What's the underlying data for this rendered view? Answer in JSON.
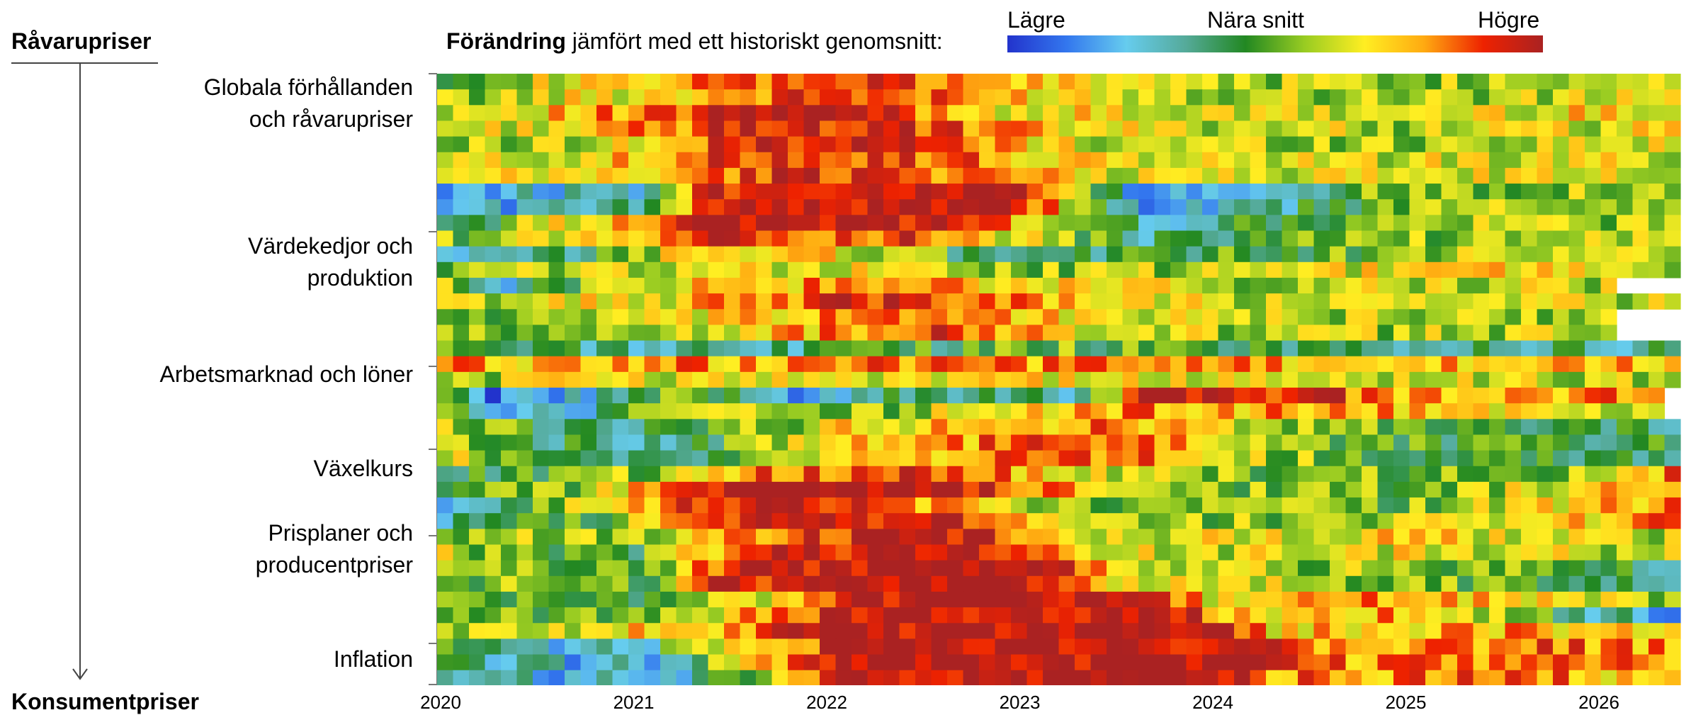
{
  "labels": {
    "top_left": "Råvarupriser",
    "bottom_left": "Konsumentpriser",
    "legend_title_bold": "Förändring",
    "legend_title_rest": " jämfört med ett historiskt genomsnitt:",
    "legend_low": "Lägre",
    "legend_mid": "Nära snitt",
    "legend_high": "Högre"
  },
  "chart_data": {
    "type": "heatmap",
    "title": "Förändring jämfört med ett historiskt genomsnitt:",
    "row_groups": [
      {
        "label_line1": "Globala förhållanden",
        "label_line2": "och råvarupriser"
      },
      {
        "label_line1": "Värdekedjor och",
        "label_line2": "produktion"
      },
      {
        "label_line1": "Arbetsmarknad och löner",
        "label_line2": ""
      },
      {
        "label_line1": "Växelkurs",
        "label_line2": ""
      },
      {
        "label_line1": "Prisplaner och",
        "label_line2": "producentpriser"
      },
      {
        "label_line1": "Inflation",
        "label_line2": ""
      }
    ],
    "x_ticks": [
      "2020",
      "2021",
      "2022",
      "2023",
      "2024",
      "2025",
      "2026"
    ],
    "x_range": [
      "2020-01",
      "2026-05"
    ],
    "n_rows": 39,
    "color_scale": {
      "low_label": "Lägre",
      "mid_label": "Nära snitt",
      "high_label": "Högre",
      "stops": [
        "#2233cc",
        "#3377ee",
        "#66ccee",
        "#55aa99",
        "#228822",
        "#99cc22",
        "#ffee22",
        "#ffaa11",
        "#ee2200",
        "#aa2222"
      ]
    },
    "row_profiles": [
      {
        "pts": [
          [
            0,
            0.1
          ],
          [
            14,
            0.45
          ],
          [
            24,
            0.8
          ],
          [
            34,
            0.5
          ],
          [
            50,
            0.2
          ],
          [
            70,
            0.15
          ],
          [
            77,
            0.45
          ]
        ]
      },
      {
        "pts": [
          [
            0,
            0.3
          ],
          [
            14,
            0.6
          ],
          [
            18,
            1.0
          ],
          [
            26,
            0.9
          ],
          [
            34,
            0.4
          ],
          [
            50,
            0.2
          ],
          [
            77,
            0.4
          ]
        ]
      },
      {
        "pts": [
          [
            0,
            0.2
          ],
          [
            14,
            0.55
          ],
          [
            20,
            0.95
          ],
          [
            30,
            0.75
          ],
          [
            40,
            0.3
          ],
          [
            60,
            0.2
          ],
          [
            77,
            0.3
          ]
        ]
      },
      {
        "pts": [
          [
            0,
            0.05
          ],
          [
            14,
            0.4
          ],
          [
            20,
            0.95
          ],
          [
            30,
            0.8
          ],
          [
            40,
            0.25
          ],
          [
            60,
            0.15
          ],
          [
            77,
            0.3
          ]
        ]
      },
      {
        "pts": [
          [
            0,
            0.2
          ],
          [
            14,
            0.45
          ],
          [
            20,
            0.9
          ],
          [
            30,
            0.75
          ],
          [
            40,
            0.3
          ],
          [
            77,
            0.25
          ]
        ]
      },
      {
        "pts": [
          [
            0,
            0.2
          ],
          [
            14,
            0.45
          ],
          [
            22,
            0.9
          ],
          [
            32,
            0.7
          ],
          [
            40,
            0.3
          ],
          [
            77,
            0.25
          ]
        ]
      },
      {
        "pts": [
          [
            0,
            -0.6
          ],
          [
            12,
            -0.4
          ],
          [
            16,
            0.9
          ],
          [
            34,
            1.0
          ],
          [
            38,
            0.55
          ],
          [
            44,
            -0.8
          ],
          [
            50,
            -0.5
          ],
          [
            60,
            0.1
          ],
          [
            77,
            0.2
          ]
        ]
      },
      {
        "pts": [
          [
            0,
            -0.3
          ],
          [
            12,
            0.7
          ],
          [
            16,
            1.0
          ],
          [
            30,
            0.95
          ],
          [
            36,
            0.5
          ],
          [
            44,
            -0.4
          ],
          [
            60,
            0.1
          ],
          [
            77,
            0.2
          ]
        ]
      },
      {
        "pts": [
          [
            0,
            0.05
          ],
          [
            10,
            0.4
          ],
          [
            16,
            0.9
          ],
          [
            30,
            0.7
          ],
          [
            34,
            0.4
          ],
          [
            44,
            -0.3
          ],
          [
            60,
            0.1
          ],
          [
            77,
            0.2
          ]
        ]
      },
      {
        "pts": [
          [
            0,
            -0.7
          ],
          [
            8,
            -0.3
          ],
          [
            16,
            0.5
          ],
          [
            28,
            0.25
          ],
          [
            34,
            -0.3
          ],
          [
            50,
            -0.1
          ],
          [
            60,
            0.1
          ],
          [
            77,
            0.2
          ]
        ]
      },
      {
        "pts": [
          [
            0,
            0.05
          ],
          [
            14,
            0.3
          ],
          [
            24,
            0.3
          ],
          [
            36,
            0.1
          ],
          [
            48,
            0.15
          ],
          [
            66,
            0.45
          ],
          [
            77,
            0.2
          ]
        ]
      },
      {
        "pts": [
          [
            0,
            0.1
          ],
          [
            4,
            -0.4
          ],
          [
            10,
            0.15
          ],
          [
            18,
            0.5
          ],
          [
            30,
            0.55
          ],
          [
            40,
            0.3
          ],
          [
            50,
            0.2
          ],
          [
            73,
            0.2
          ]
        ]
      },
      {
        "pts": [
          [
            0,
            0.2
          ],
          [
            14,
            0.35
          ],
          [
            22,
            0.7
          ],
          [
            28,
            0.9
          ],
          [
            34,
            0.75
          ],
          [
            40,
            0.4
          ],
          [
            50,
            0.2
          ],
          [
            78,
            0.2
          ]
        ]
      },
      {
        "pts": [
          [
            0,
            0.0
          ],
          [
            8,
            0.05
          ],
          [
            14,
            0.2
          ],
          [
            24,
            0.55
          ],
          [
            30,
            0.75
          ],
          [
            36,
            0.5
          ],
          [
            44,
            0.2
          ],
          [
            73,
            0.15
          ]
        ]
      },
      {
        "pts": [
          [
            0,
            0.15
          ],
          [
            5,
            -0.3
          ],
          [
            16,
            -0.35
          ],
          [
            28,
            -0.2
          ],
          [
            36,
            0.05
          ],
          [
            50,
            -0.2
          ],
          [
            77,
            -0.3
          ]
        ]
      },
      {
        "pts": [
          [
            0,
            0.5
          ],
          [
            14,
            0.55
          ],
          [
            30,
            0.6
          ],
          [
            50,
            0.5
          ],
          [
            77,
            0.45
          ]
        ]
      },
      {
        "pts": [
          [
            0,
            0.15
          ],
          [
            10,
            0.3
          ],
          [
            24,
            0.35
          ],
          [
            40,
            0.3
          ],
          [
            60,
            0.2
          ],
          [
            77,
            0.2
          ]
        ]
      },
      {
        "pts": [
          [
            0,
            -0.1
          ],
          [
            3,
            -0.8
          ],
          [
            8,
            -0.6
          ],
          [
            14,
            0.15
          ],
          [
            22,
            -0.7
          ],
          [
            26,
            -0.3
          ],
          [
            40,
            -0.3
          ],
          [
            44,
            0.9
          ],
          [
            52,
            0.9
          ],
          [
            60,
            0.6
          ],
          [
            76,
            0.6
          ]
        ]
      },
      {
        "pts": [
          [
            0,
            0.1
          ],
          [
            3,
            -0.7
          ],
          [
            8,
            -0.5
          ],
          [
            14,
            0.2
          ],
          [
            24,
            0.05
          ],
          [
            34,
            0.3
          ],
          [
            44,
            0.6
          ],
          [
            60,
            0.45
          ],
          [
            76,
            0.3
          ]
        ]
      },
      {
        "pts": [
          [
            0,
            0.3
          ],
          [
            6,
            -0.2
          ],
          [
            14,
            -0.2
          ],
          [
            24,
            0.3
          ],
          [
            32,
            0.5
          ],
          [
            40,
            0.6
          ],
          [
            50,
            0.3
          ],
          [
            60,
            -0.1
          ],
          [
            77,
            -0.2
          ]
        ]
      },
      {
        "pts": [
          [
            0,
            0.3
          ],
          [
            6,
            -0.2
          ],
          [
            14,
            -0.3
          ],
          [
            24,
            0.3
          ],
          [
            34,
            0.6
          ],
          [
            44,
            0.7
          ],
          [
            50,
            0.2
          ],
          [
            60,
            -0.1
          ],
          [
            78,
            -0.2
          ]
        ]
      },
      {
        "pts": [
          [
            0,
            -0.2
          ],
          [
            14,
            0.15
          ],
          [
            20,
            0.65
          ],
          [
            26,
            0.75
          ],
          [
            34,
            0.65
          ],
          [
            40,
            0.3
          ],
          [
            50,
            0.05
          ],
          [
            70,
            0.0
          ],
          [
            77,
            0.6
          ]
        ]
      },
      {
        "pts": [
          [
            0,
            -0.2
          ],
          [
            10,
            0.2
          ],
          [
            16,
            1.0
          ],
          [
            32,
            1.0
          ],
          [
            36,
            0.7
          ],
          [
            44,
            0.1
          ],
          [
            60,
            0.0
          ],
          [
            77,
            0.5
          ]
        ]
      },
      {
        "pts": [
          [
            0,
            -0.4
          ],
          [
            10,
            0.3
          ],
          [
            16,
            0.8
          ],
          [
            24,
            0.85
          ],
          [
            30,
            0.6
          ],
          [
            40,
            0.05
          ],
          [
            60,
            0.0
          ],
          [
            77,
            0.6
          ]
        ]
      },
      {
        "pts": [
          [
            0,
            -0.4
          ],
          [
            10,
            0.0
          ],
          [
            16,
            0.75
          ],
          [
            24,
            0.85
          ],
          [
            30,
            0.95
          ],
          [
            34,
            0.6
          ],
          [
            40,
            0.05
          ],
          [
            60,
            0.2
          ],
          [
            77,
            0.6
          ]
        ]
      },
      {
        "pts": [
          [
            0,
            0.1
          ],
          [
            10,
            0.1
          ],
          [
            18,
            0.5
          ],
          [
            26,
            0.9
          ],
          [
            34,
            1.0
          ],
          [
            40,
            0.2
          ],
          [
            60,
            0.4
          ],
          [
            77,
            0.2
          ]
        ]
      },
      {
        "pts": [
          [
            0,
            0.2
          ],
          [
            12,
            -0.1
          ],
          [
            16,
            0.5
          ],
          [
            24,
            0.95
          ],
          [
            36,
            0.95
          ],
          [
            40,
            0.2
          ],
          [
            60,
            0.3
          ],
          [
            77,
            0.2
          ]
        ]
      },
      {
        "pts": [
          [
            0,
            0.1
          ],
          [
            12,
            -0.1
          ],
          [
            18,
            0.9
          ],
          [
            26,
            1.0
          ],
          [
            38,
            1.0
          ],
          [
            42,
            0.3
          ],
          [
            60,
            0.1
          ],
          [
            77,
            -0.2
          ]
        ]
      },
      {
        "pts": [
          [
            0,
            0.2
          ],
          [
            12,
            -0.2
          ],
          [
            20,
            0.3
          ],
          [
            26,
            1.0
          ],
          [
            44,
            1.0
          ],
          [
            48,
            0.3
          ],
          [
            60,
            0.55
          ],
          [
            77,
            0.1
          ]
        ]
      },
      {
        "pts": [
          [
            0,
            0.1
          ],
          [
            12,
            -0.1
          ],
          [
            20,
            0.55
          ],
          [
            26,
            1.0
          ],
          [
            46,
            1.0
          ],
          [
            50,
            0.4
          ],
          [
            60,
            0.5
          ],
          [
            77,
            -0.6
          ]
        ]
      },
      {
        "pts": [
          [
            0,
            0.2
          ],
          [
            10,
            0.3
          ],
          [
            18,
            0.6
          ],
          [
            24,
            1.0
          ],
          [
            48,
            1.0
          ],
          [
            52,
            0.4
          ],
          [
            62,
            0.5
          ],
          [
            77,
            0.5
          ]
        ]
      },
      {
        "pts": [
          [
            0,
            -0.2
          ],
          [
            6,
            -0.6
          ],
          [
            12,
            -0.5
          ],
          [
            18,
            0.55
          ],
          [
            24,
            0.8
          ],
          [
            26,
            1.0
          ],
          [
            50,
            1.0
          ],
          [
            54,
            0.6
          ],
          [
            70,
            0.65
          ],
          [
            77,
            0.55
          ]
        ]
      },
      {
        "pts": [
          [
            0,
            -0.3
          ],
          [
            8,
            -0.55
          ],
          [
            14,
            -0.45
          ],
          [
            20,
            0.5
          ],
          [
            26,
            1.0
          ],
          [
            52,
            1.0
          ],
          [
            56,
            0.6
          ],
          [
            70,
            0.65
          ],
          [
            77,
            0.55
          ]
        ]
      },
      {
        "pts": [
          [
            0,
            -0.3
          ],
          [
            8,
            -0.6
          ],
          [
            14,
            -0.5
          ],
          [
            20,
            0.1
          ],
          [
            26,
            1.0
          ],
          [
            50,
            1.0
          ],
          [
            52,
            0.6
          ],
          [
            70,
            0.6
          ],
          [
            77,
            0.3
          ]
        ]
      }
    ]
  }
}
